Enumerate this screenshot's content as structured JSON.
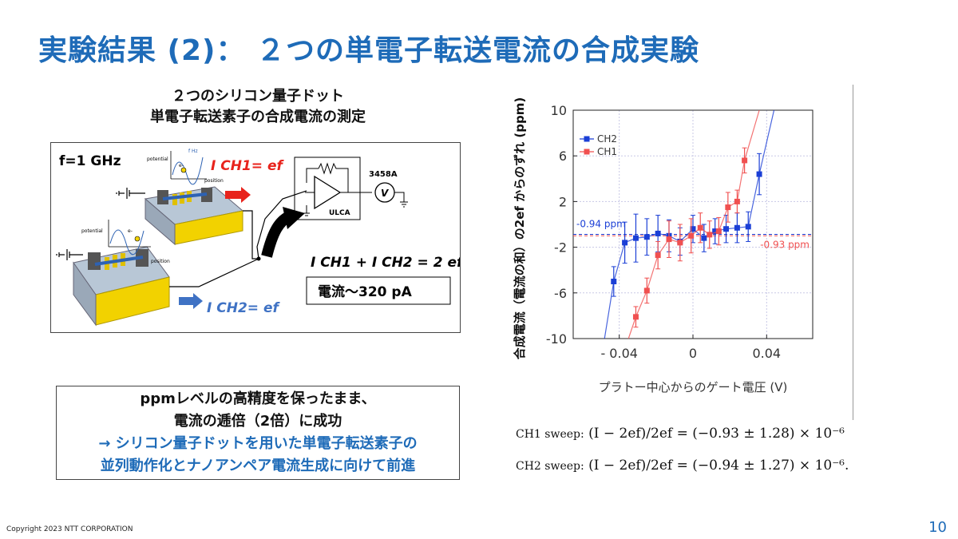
{
  "title": "実験結果 (2)： ２つの単電子転送電流の合成実験",
  "diagram": {
    "title_line1": "２つのシリコン量子ドット",
    "title_line2": "単電子転送素子の合成電流の測定",
    "freq_label": "f=1 GHz",
    "ich1_label": "I CH1= ef",
    "ich2_label": "I CH2= ef",
    "sum_label": "I CH1 + I CH2 = 2 ef",
    "current_label": "電流〜320 pA",
    "ulca_label": "ULCA",
    "meter_model": "3458A",
    "meter_symbol": "V",
    "potential_label": "potential",
    "position_label": "position",
    "electron_label": "e-",
    "fhz_label": "f Hz"
  },
  "summary": {
    "line1": "ppmレベルの高精度を保ったまま、",
    "line2": "電流の逓倍（2倍）に成功",
    "line3": "→  シリコン量子ドットを用いた単電子転送素子の",
    "line4": "並列動作化とナノアンペア電流生成に向けて前進"
  },
  "equations": {
    "ch1_label": "CH1 sweep:",
    "ch1_formula": "(I − 2ef)/2ef = (−0.93 ± 1.28) × 10⁻⁶",
    "ch2_label": "CH2 sweep:",
    "ch2_formula": "(I − 2ef)/2ef = (−0.94 ± 1.27) × 10⁻⁶."
  },
  "footer": "Copyright 2023 NTT CORPORATION",
  "page_number": "10",
  "colors": {
    "accent": "#1e6bb8",
    "ch1": "#f05050",
    "ch2": "#1b3fd6",
    "chip_gold": "#f2d200",
    "text_red": "#e8231c"
  },
  "chart_data": {
    "type": "scatter",
    "xlabel": "プラトー中心からのゲート電圧 (V)",
    "ylabel": "合成電流（電流の和）の2ef からのずれ (ppm)",
    "xlim": [
      -0.065,
      0.065
    ],
    "ylim": [
      -10,
      10
    ],
    "x_ticks": [
      "- 0.04",
      "0",
      "0.04"
    ],
    "x_tick_values": [
      -0.04,
      0,
      0.04
    ],
    "y_ticks": [
      "10",
      "6",
      "2",
      "-2",
      "-6",
      "-10"
    ],
    "y_tick_values": [
      10,
      6,
      2,
      -2,
      -6,
      -10
    ],
    "grid": true,
    "legend_position": "top-left",
    "series": [
      {
        "name": "CH2",
        "color": "#1b3fd6",
        "points": [
          {
            "x": -0.043,
            "y": -5.0,
            "err": 1.3
          },
          {
            "x": -0.037,
            "y": -1.6,
            "err": 1.8
          },
          {
            "x": -0.031,
            "y": -1.2,
            "err": 2.1
          },
          {
            "x": -0.025,
            "y": -1.1,
            "err": 1.6
          },
          {
            "x": -0.019,
            "y": -0.8,
            "err": 1.6
          },
          {
            "x": -0.013,
            "y": -1.0,
            "err": 1.4
          },
          {
            "x": -0.007,
            "y": -1.5,
            "err": 1.2
          },
          {
            "x": 0.0,
            "y": -0.4,
            "err": 1.2
          },
          {
            "x": 0.006,
            "y": -1.2,
            "err": 1.2
          },
          {
            "x": 0.012,
            "y": -0.6,
            "err": 1.1
          },
          {
            "x": 0.018,
            "y": -0.4,
            "err": 1.2
          },
          {
            "x": 0.024,
            "y": -0.3,
            "err": 1.3
          },
          {
            "x": 0.03,
            "y": -0.2,
            "err": 1.3
          },
          {
            "x": 0.036,
            "y": 4.4,
            "err": 1.8
          }
        ]
      },
      {
        "name": "CH1",
        "color": "#f05050",
        "points": [
          {
            "x": -0.031,
            "y": -8.1,
            "err": 0.9
          },
          {
            "x": -0.025,
            "y": -5.8,
            "err": 1.1
          },
          {
            "x": -0.019,
            "y": -2.7,
            "err": 1.2
          },
          {
            "x": -0.013,
            "y": -1.3,
            "err": 1.6
          },
          {
            "x": -0.007,
            "y": -1.6,
            "err": 1.6
          },
          {
            "x": -0.001,
            "y": -1.0,
            "err": 1.5
          },
          {
            "x": 0.004,
            "y": -0.3,
            "err": 1.3
          },
          {
            "x": 0.009,
            "y": -0.9,
            "err": 1.2
          },
          {
            "x": 0.014,
            "y": -0.6,
            "err": 1.2
          },
          {
            "x": 0.019,
            "y": 1.5,
            "err": 1.3
          },
          {
            "x": 0.024,
            "y": 2.0,
            "err": 1.0
          },
          {
            "x": 0.028,
            "y": 5.6,
            "err": 1.1
          }
        ]
      }
    ],
    "reference_lines": [
      {
        "name": "CH2 mean",
        "y": -0.94,
        "label": "-0.94 ppm",
        "color": "#1b3fd6"
      },
      {
        "name": "CH1 mean",
        "y": -0.93,
        "label": "-0.93 ppm",
        "color": "#f05050"
      }
    ]
  }
}
